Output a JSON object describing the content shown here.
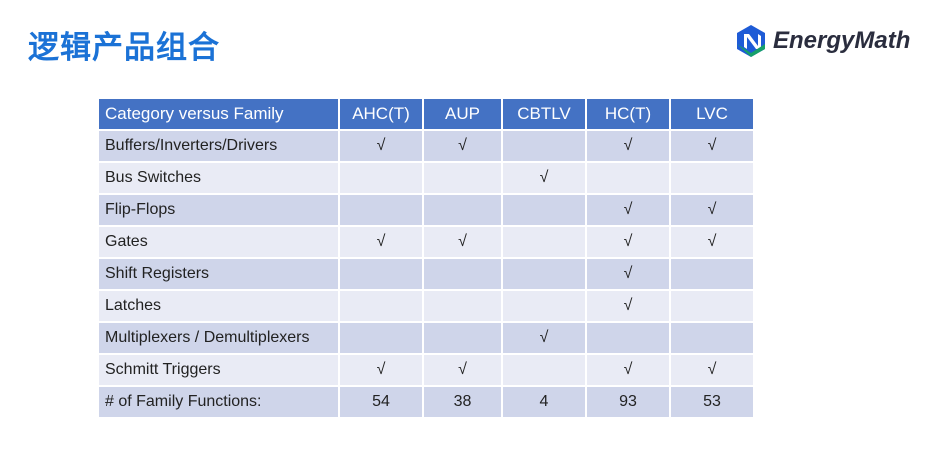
{
  "title": "逻辑产品组合",
  "logo": {
    "text": "EnergyMath",
    "icon": "energymath-logo-icon",
    "colors": [
      "#1e5bd6",
      "#16a06a"
    ]
  },
  "table": {
    "headers": [
      "Category versus Family",
      "AHC(T)",
      "AUP",
      "CBTLV",
      "HC(T)",
      "LVC"
    ],
    "rows": [
      [
        "Buffers/Inverters/Drivers",
        "√",
        "√",
        "",
        "√",
        "√"
      ],
      [
        "Bus Switches",
        "",
        "",
        "√",
        "",
        ""
      ],
      [
        "Flip-Flops",
        "",
        "",
        "",
        "√",
        "√"
      ],
      [
        "Gates",
        "√",
        "√",
        "",
        "√",
        "√"
      ],
      [
        "Shift Registers",
        "",
        "",
        "",
        "√",
        ""
      ],
      [
        "Latches",
        "",
        "",
        "",
        "√",
        ""
      ],
      [
        "Multiplexers / Demultiplexers",
        "",
        "",
        "√",
        "",
        ""
      ],
      [
        "Schmitt Triggers",
        "√",
        "√",
        "",
        "√",
        "√"
      ],
      [
        "# of Family Functions:",
        "54",
        "38",
        "4",
        "93",
        "53"
      ]
    ]
  },
  "colors": {
    "header": "#4472c4",
    "row_odd": "#cfd5ea",
    "row_even": "#e9ebf5",
    "title": "#1b72d6"
  }
}
